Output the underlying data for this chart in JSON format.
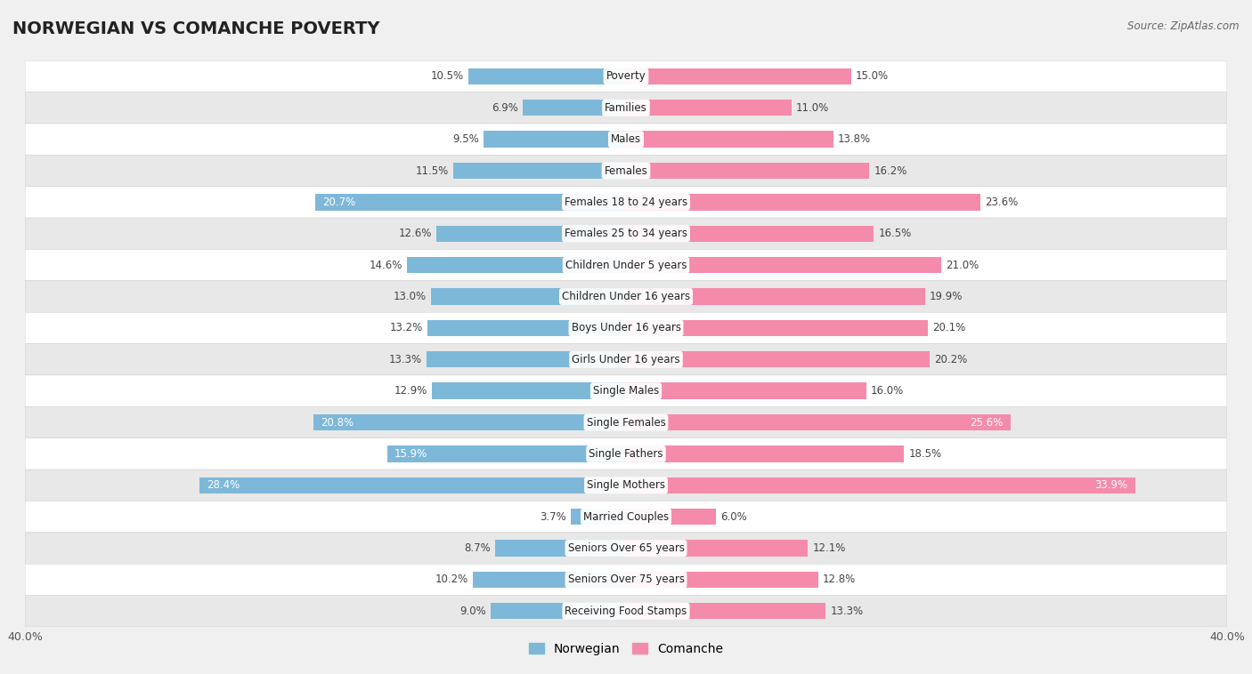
{
  "title": "NORWEGIAN VS COMANCHE POVERTY",
  "source": "Source: ZipAtlas.com",
  "categories": [
    "Poverty",
    "Families",
    "Males",
    "Females",
    "Females 18 to 24 years",
    "Females 25 to 34 years",
    "Children Under 5 years",
    "Children Under 16 years",
    "Boys Under 16 years",
    "Girls Under 16 years",
    "Single Males",
    "Single Females",
    "Single Fathers",
    "Single Mothers",
    "Married Couples",
    "Seniors Over 65 years",
    "Seniors Over 75 years",
    "Receiving Food Stamps"
  ],
  "norwegian": [
    10.5,
    6.9,
    9.5,
    11.5,
    20.7,
    12.6,
    14.6,
    13.0,
    13.2,
    13.3,
    12.9,
    20.8,
    15.9,
    28.4,
    3.7,
    8.7,
    10.2,
    9.0
  ],
  "comanche": [
    15.0,
    11.0,
    13.8,
    16.2,
    23.6,
    16.5,
    21.0,
    19.9,
    20.1,
    20.2,
    16.0,
    25.6,
    18.5,
    33.9,
    6.0,
    12.1,
    12.8,
    13.3
  ],
  "norwegian_color": "#7EB8D9",
  "comanche_color": "#F48BAB",
  "bar_height": 0.52,
  "background_color": "#f0f0f0",
  "row_colors": [
    "#ffffff",
    "#e8e8e8"
  ],
  "title_fontsize": 14,
  "label_fontsize": 8.5,
  "value_fontsize": 8.5,
  "source_fontsize": 8.5
}
